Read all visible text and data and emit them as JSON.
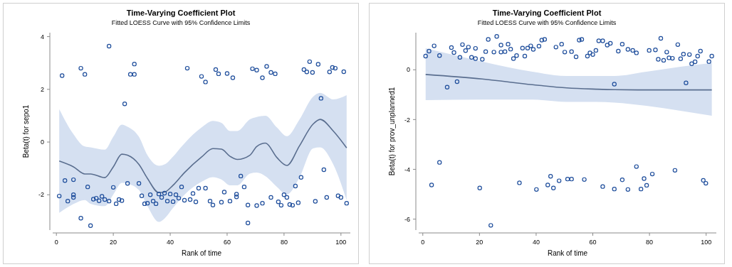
{
  "chart_data": [
    {
      "type": "scatter",
      "title": "Time-Varying Coefficient Plot",
      "subtitle": "Fitted LOESS Curve with 95% Confidence Limits",
      "xlabel": "Rank of time",
      "ylabel": "Beta(t) for sepo1",
      "xlim": [
        -1.3,
        103.3
      ],
      "ylim": [
        -3.34,
        4.15
      ],
      "xticks": [
        0,
        20,
        40,
        60,
        80,
        100
      ],
      "yticks": [
        -2,
        0,
        2,
        4
      ],
      "series": [
        {
          "type": "scatter",
          "marker": "circle",
          "color": "#1f4e9c",
          "x": [
            1,
            2,
            3,
            4,
            6,
            6,
            6,
            8.6,
            8.6,
            10,
            11,
            12,
            13,
            14,
            15,
            16,
            17,
            18.5,
            18.5,
            20,
            21,
            22,
            23,
            24,
            25,
            26,
            27.4,
            27.4,
            29,
            30,
            31,
            32,
            33,
            34,
            35,
            36,
            37,
            38,
            39,
            40,
            41,
            42,
            43,
            44,
            45,
            46,
            47,
            48,
            49,
            50,
            51,
            52.4,
            52.4,
            54,
            55,
            56,
            57,
            58,
            59,
            60,
            61,
            62,
            63.3,
            63.3,
            64.8,
            66,
            67.3,
            67.3,
            68.9,
            70.4,
            70.4,
            72.4,
            72.4,
            73.9,
            75.4,
            75.4,
            76.9,
            78,
            79,
            80,
            81,
            82,
            83,
            84,
            85,
            86,
            87,
            88,
            89,
            90,
            91,
            92,
            93,
            94,
            95,
            96,
            97,
            98,
            99,
            100,
            101,
            102
          ],
          "values": [
            -2.05,
            2.52,
            -1.46,
            -2.24,
            -1.43,
            -2.0,
            -2.1,
            2.8,
            -2.89,
            2.57,
            -1.7,
            -3.17,
            -2.17,
            -2.13,
            -2.23,
            -2.06,
            -2.18,
            3.64,
            -2.24,
            -1.72,
            -2.34,
            -2.18,
            -2.22,
            1.45,
            -1.57,
            2.57,
            2.96,
            2.57,
            -1.57,
            -2.04,
            -2.34,
            -2.32,
            -2.0,
            -2.24,
            -2.34,
            -1.97,
            -2.1,
            -1.94,
            -2.24,
            -1.97,
            -2.26,
            -2.0,
            -2.13,
            -1.7,
            -2.21,
            2.8,
            -2.18,
            -1.95,
            -2.27,
            -1.75,
            2.49,
            2.28,
            -1.75,
            -2.24,
            -2.39,
            2.75,
            2.59,
            -2.28,
            -1.9,
            2.6,
            -2.24,
            2.44,
            -1.98,
            -2.08,
            -1.29,
            -1.7,
            -2.39,
            -3.07,
            2.78,
            2.73,
            -2.41,
            2.44,
            -2.32,
            2.87,
            -2.1,
            2.64,
            2.59,
            -2.27,
            -2.4,
            -2.0,
            -2.1,
            -2.37,
            -2.4,
            -1.67,
            -2.3,
            -1.34,
            2.75,
            2.66,
            3.05,
            2.64,
            -2.25,
            2.95,
            1.66,
            -1.05,
            -2.1,
            2.66,
            2.83,
            2.8,
            -2.04,
            -2.1,
            2.67,
            -2.32
          ]
        },
        {
          "type": "line",
          "marker": "none",
          "color": "#5a6e8f",
          "x": [
            1,
            6,
            10,
            12,
            17,
            20,
            23,
            25,
            29,
            32,
            36,
            38,
            41,
            45,
            51,
            55,
            58,
            61,
            63.6,
            68,
            70.4,
            73.5,
            77.5,
            81,
            85.4,
            90.2,
            92.7,
            97.3,
            102
          ],
          "values": [
            -0.72,
            -0.94,
            -1.21,
            -1.21,
            -1.35,
            -0.94,
            -0.46,
            -0.5,
            -0.85,
            -1.38,
            -1.92,
            -1.9,
            -1.64,
            -1.16,
            -0.57,
            -0.25,
            -0.27,
            -0.54,
            -0.66,
            -0.5,
            -0.17,
            -0.04,
            -0.59,
            -0.89,
            -0.15,
            0.68,
            0.86,
            0.42,
            -0.22
          ],
          "lower": [
            -2.69,
            -2.35,
            -2.2,
            -2.34,
            -2.43,
            -1.99,
            -1.55,
            -1.58,
            -1.82,
            -2.43,
            -3.03,
            -2.9,
            -2.5,
            -2.0,
            -1.51,
            -1.33,
            -1.42,
            -1.64,
            -1.64,
            -1.2,
            -1.16,
            -1.3,
            -1.7,
            -1.99,
            -1.35,
            -0.24,
            -0.2,
            -0.85,
            -2.21
          ],
          "upper": [
            1.25,
            0.3,
            -0.17,
            -0.2,
            -0.29,
            0.2,
            0.66,
            0.58,
            0.2,
            -0.5,
            -0.9,
            -0.85,
            -0.55,
            -0.05,
            0.55,
            0.8,
            0.73,
            0.42,
            0.42,
            0.86,
            0.95,
            1.0,
            0.55,
            0.22,
            0.85,
            1.72,
            1.87,
            1.62,
            1.78
          ]
        }
      ]
    },
    {
      "type": "scatter",
      "title": "Time-Varying Coefficient Plot",
      "subtitle": "Fitted LOESS Curve with 95% Confidence Limits",
      "xlabel": "Rank of time",
      "ylabel": "Beta(t) for prov_unplanned1",
      "xlim": [
        -1.45,
        103.6
      ],
      "ylim": [
        -6.44,
        1.49
      ],
      "xticks": [
        0,
        20,
        40,
        60,
        80,
        100
      ],
      "yticks": [
        -6,
        -4,
        -2,
        0
      ],
      "series": [
        {
          "type": "scatter",
          "marker": "circle",
          "color": "#1f4e9c",
          "x": [
            1,
            2.2,
            3.1,
            4,
            5.9,
            5.9,
            8.6,
            10.1,
            11,
            12.1,
            13.1,
            14,
            15.1,
            16.1,
            17.2,
            18.6,
            18.6,
            20.1,
            21,
            22.2,
            23.1,
            24,
            25.1,
            26.1,
            27.6,
            27.6,
            29,
            30.1,
            31,
            32,
            33.1,
            34.1,
            35.2,
            36,
            37,
            38.1,
            39,
            40.1,
            41,
            42,
            43,
            44.1,
            45.1,
            46.1,
            47,
            48.1,
            49,
            50.1,
            51.1,
            52.5,
            52.5,
            54.1,
            55.2,
            56.1,
            57,
            58.1,
            59,
            60,
            61.1,
            62.1,
            63.5,
            63.5,
            65.1,
            66.2,
            67.6,
            67.6,
            69,
            70.4,
            70.4,
            72.4,
            72.4,
            74.1,
            75.4,
            75.4,
            77,
            78.1,
            79,
            79.9,
            81,
            82.1,
            83.1,
            84,
            85,
            86.1,
            86.9,
            88.1,
            89,
            90,
            91,
            92,
            92.9,
            94.1,
            94.9,
            96.1,
            97,
            98,
            99,
            99.9,
            101,
            102
          ],
          "values": [
            0.55,
            0.75,
            -4.63,
            0.96,
            0.57,
            -3.72,
            -0.7,
            0.89,
            0.69,
            -0.48,
            0.5,
            1.01,
            0.77,
            0.91,
            0.5,
            0.86,
            0.45,
            -4.75,
            0.42,
            0.73,
            1.22,
            -6.25,
            0.71,
            1.34,
            0.99,
            0.71,
            0.73,
            1.03,
            0.83,
            0.45,
            0.57,
            -4.54,
            0.87,
            0.55,
            0.87,
            0.96,
            0.82,
            -4.81,
            0.95,
            1.19,
            1.22,
            -4.63,
            -4.28,
            -4.75,
            0.91,
            -4.46,
            1.03,
            0.71,
            -4.39,
            0.73,
            -4.39,
            0.52,
            1.19,
            1.22,
            -4.41,
            0.55,
            0.68,
            0.61,
            0.78,
            1.16,
            1.16,
            -4.69,
            0.99,
            1.06,
            -0.58,
            -4.79,
            0.75,
            1.03,
            -4.42,
            0.82,
            -4.81,
            0.78,
            0.68,
            -3.89,
            -4.79,
            -4.37,
            -4.64,
            0.78,
            -4.19,
            0.8,
            0.42,
            1.26,
            0.38,
            0.71,
            0.48,
            0.46,
            -4.04,
            1.01,
            0.44,
            0.63,
            -0.53,
            0.61,
            0.24,
            0.32,
            0.55,
            0.75,
            -4.44,
            -4.56,
            0.33,
            0.55
          ]
        },
        {
          "type": "line",
          "marker": "none",
          "color": "#5a6e8f",
          "x": [
            1,
            21,
            38.7,
            50.8,
            61.2,
            67.6,
            78.9,
            90.9,
            102
          ],
          "values": [
            -0.19,
            -0.37,
            -0.6,
            -0.73,
            -0.78,
            -0.8,
            -0.81,
            -0.81,
            -0.81
          ],
          "lower": [
            -1.22,
            -1.2,
            -1.2,
            -1.29,
            -1.29,
            -1.32,
            -1.45,
            -1.65,
            -1.85
          ],
          "upper": [
            0.86,
            0.33,
            -0.08,
            -0.25,
            -0.25,
            -0.25,
            -0.08,
            0.12,
            0.27
          ]
        }
      ]
    }
  ]
}
